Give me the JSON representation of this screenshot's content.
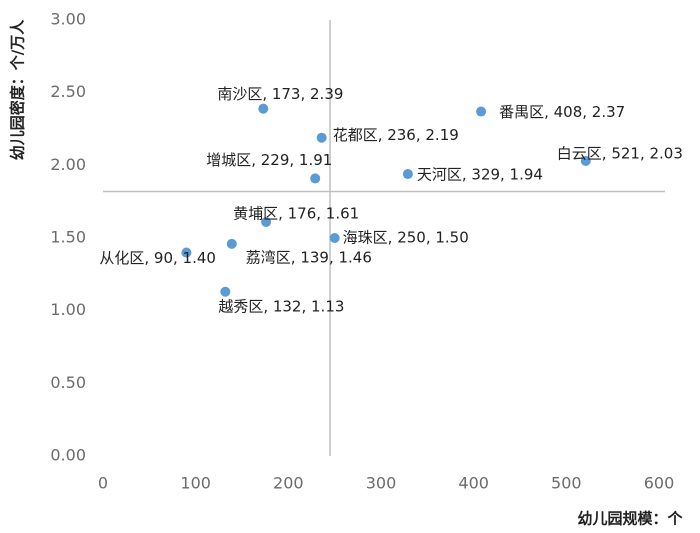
{
  "chart_data": {
    "type": "scatter",
    "x_label": "幼儿园规模：个",
    "y_label": "幼儿园密度：个/万人",
    "point_labels": [
      "南沙区, 173, 2.39",
      "番禺区, 408, 2.37",
      "花都区, 236, 2.19",
      "白云区, 521, 2.03",
      "增城区, 229, 1.91",
      "天河区, 329, 1.94",
      "黄埔区, 176, 1.61",
      "海珠区, 250, 1.50",
      "从化区, 90, 1.40",
      "荔湾区, 139, 1.46",
      "越秀区, 132, 1.13"
    ],
    "x": [
      173,
      408,
      236,
      521,
      229,
      329,
      176,
      250,
      90,
      139,
      132
    ],
    "values": [
      2.39,
      2.37,
      2.19,
      2.03,
      1.91,
      1.94,
      1.61,
      1.5,
      1.4,
      1.46,
      1.13
    ],
    "color": "#5b9bd5",
    "xlim": [
      0,
      600
    ],
    "xticks": [
      0,
      100,
      200,
      300,
      400,
      500,
      600
    ],
    "ylim": [
      0,
      3
    ],
    "yticks": [
      {
        "value": 0,
        "label": "0.00"
      },
      {
        "value": 0.5,
        "label": "0.50"
      },
      {
        "value": 1,
        "label": "1.00"
      },
      {
        "value": 1.5,
        "label": "1.50"
      },
      {
        "value": 2,
        "label": "2.00"
      },
      {
        "value": 2.5,
        "label": "2.50"
      },
      {
        "value": 3,
        "label": "3.00"
      }
    ],
    "reference_x": 245,
    "reference_y": 1.82
  }
}
